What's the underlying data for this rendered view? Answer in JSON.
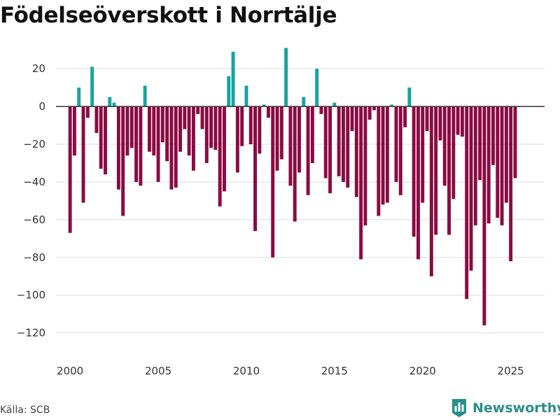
{
  "colors": {
    "positive": "#17a2a0",
    "negative": "#8b0a42",
    "grid": "#dedede",
    "zero": "#333333"
  },
  "source": "Källa: SCB",
  "brand": {
    "name": "Newsworthy",
    "icon": "chart-logo-icon"
  },
  "chart_data": {
    "type": "bar",
    "title": "Födelseöverskott i Norrtälje",
    "xlabel": "",
    "ylabel": "",
    "grid": true,
    "ylim": [
      -132,
      36
    ],
    "xlim": [
      1999.2,
      2026.92
    ],
    "x_ticks": [
      2000,
      2005,
      2010,
      2015,
      2020,
      2025
    ],
    "x_tick_labels": [
      "2000",
      "2005",
      "2010",
      "2015",
      "2020",
      "2025"
    ],
    "y_ticks": [
      20,
      0,
      -20,
      -40,
      -60,
      -80,
      -100,
      -120
    ],
    "y_tick_labels": [
      "20",
      "0",
      "−20",
      "−40",
      "−60",
      "−80",
      "−100",
      "−120"
    ],
    "period": "quarterly, 2000 Q1 – 2025 Q3",
    "values": [
      -67,
      -26,
      10,
      -51,
      -6,
      21,
      -14,
      -33,
      -36,
      5,
      2,
      -44,
      -58,
      -26,
      -22,
      -40,
      -42,
      11,
      -24,
      -26,
      -40,
      -19,
      -29,
      -44,
      -43,
      -24,
      -12,
      -26,
      -34,
      -4,
      -12,
      -30,
      -22,
      -23,
      -53,
      -45,
      16,
      29,
      -35,
      -21,
      11,
      -20,
      -66,
      -25,
      1,
      -6,
      -80,
      -34,
      -28,
      31,
      -42,
      -61,
      -35,
      5,
      -47,
      -30,
      20,
      -4,
      -38,
      -46,
      2,
      -37,
      -40,
      -43,
      -13,
      -48,
      -81,
      -63,
      -7,
      -2,
      -58,
      -52,
      -51,
      1,
      -40,
      -47,
      -11,
      10,
      -69,
      -81,
      -51,
      -13,
      -90,
      -68,
      -18,
      -42,
      -68,
      -49,
      -15,
      -16,
      -102,
      -87,
      -63,
      -39,
      -116,
      -62,
      -31,
      -59,
      -63,
      -51,
      -82,
      -38
    ]
  }
}
